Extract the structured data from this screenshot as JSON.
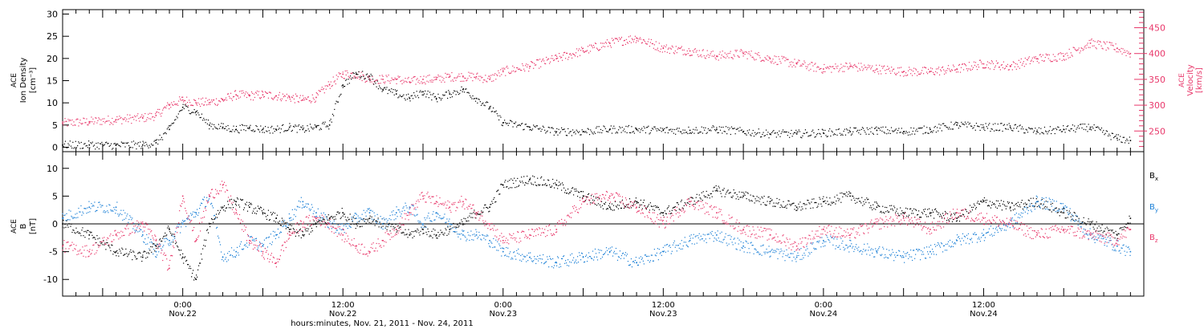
{
  "colors": {
    "density": "#000000",
    "velocity": "#e8376a",
    "bx": "#000000",
    "by": "#1a7fd6",
    "bz": "#e8376a",
    "frame": "#000000"
  },
  "footer": {
    "axis_title": "hours:minutes, Nov. 21, 2011 - Nov. 24, 2011"
  },
  "chart_data": [
    {
      "type": "scatter",
      "panel": "top",
      "ylabel_left": [
        "ACE",
        "Ion Density",
        "[cm⁻³]"
      ],
      "ylabel_right": [
        "ACE",
        "Velocity",
        "[km/s]"
      ],
      "x_unit": "hours since Nov. 21, 2011 00:00",
      "xlim": [
        15,
        96
      ],
      "ylim_left": [
        -1,
        31
      ],
      "ylim_right": [
        210,
        485
      ],
      "yticks_left": [
        0,
        5,
        10,
        15,
        20,
        25,
        30
      ],
      "yticks_right": [
        250,
        300,
        350,
        400,
        450
      ],
      "series": [
        {
          "key": "density",
          "axis": "left",
          "x": [
            15,
            17,
            19,
            21,
            22,
            23,
            24,
            25,
            26,
            27,
            28,
            29,
            30,
            31,
            32,
            33,
            34,
            35,
            36,
            37,
            38,
            39,
            40,
            41,
            42,
            43,
            44,
            45,
            46,
            47,
            48,
            50,
            52,
            54,
            56,
            58,
            60,
            62,
            64,
            66,
            68,
            70,
            72,
            74,
            76,
            78,
            80,
            82,
            84,
            86,
            88,
            90,
            92,
            94,
            95
          ],
          "y": [
            0.5,
            0.5,
            0.4,
            0.5,
            1.0,
            4.0,
            9.0,
            8.0,
            5.0,
            4.5,
            4.0,
            4.5,
            4.0,
            4.0,
            4.5,
            4.0,
            4.5,
            5.0,
            14.0,
            16.5,
            16.0,
            13.0,
            12.0,
            11.0,
            12.5,
            11.0,
            12.0,
            13.0,
            11.0,
            9.0,
            5.5,
            4.5,
            3.5,
            3.5,
            4.0,
            4.0,
            3.8,
            3.8,
            4.0,
            3.5,
            3.0,
            3.0,
            3.2,
            3.5,
            3.8,
            3.5,
            4.0,
            5.0,
            4.5,
            4.5,
            3.5,
            4.0,
            4.5,
            2.0,
            1.5
          ]
        },
        {
          "key": "velocity",
          "axis": "right",
          "x": [
            15,
            17,
            19,
            21,
            22,
            23,
            24,
            25,
            26,
            27,
            28,
            29,
            30,
            31,
            32,
            33,
            34,
            35,
            36,
            37,
            38,
            39,
            40,
            41,
            42,
            43,
            44,
            45,
            46,
            47,
            48,
            50,
            52,
            54,
            56,
            58,
            60,
            62,
            64,
            66,
            68,
            70,
            72,
            74,
            76,
            78,
            80,
            82,
            84,
            86,
            88,
            90,
            92,
            94,
            95
          ],
          "y": [
            265,
            268,
            272,
            275,
            280,
            300,
            310,
            305,
            305,
            310,
            320,
            318,
            320,
            318,
            315,
            310,
            315,
            340,
            360,
            360,
            350,
            350,
            350,
            345,
            350,
            350,
            355,
            355,
            355,
            350,
            365,
            375,
            390,
            405,
            420,
            430,
            410,
            405,
            395,
            400,
            390,
            380,
            370,
            375,
            370,
            365,
            365,
            370,
            380,
            375,
            390,
            395,
            420,
            410,
            400
          ]
        }
      ]
    },
    {
      "type": "scatter",
      "panel": "bottom",
      "ylabel_left": [
        "ACE",
        "B",
        "[nT]"
      ],
      "x_unit": "hours since Nov. 21, 2011 00:00",
      "xlim": [
        15,
        96
      ],
      "ylim": [
        -13,
        13
      ],
      "yticks": [
        -10,
        -5,
        0,
        5,
        10
      ],
      "xticks": [
        18,
        24,
        30,
        36,
        42,
        48,
        54,
        60,
        66,
        72,
        78,
        84,
        90,
        96
      ],
      "xtick_labels": [
        {
          "x": 24,
          "time": "0:00",
          "date": "Nov.22"
        },
        {
          "x": 36,
          "time": "12:00",
          "date": "Nov.22"
        },
        {
          "x": 48,
          "time": "0:00",
          "date": "Nov.23"
        },
        {
          "x": 60,
          "time": "12:00",
          "date": "Nov.23"
        },
        {
          "x": 72,
          "time": "0:00",
          "date": "Nov.24"
        },
        {
          "x": 84,
          "time": "12:00",
          "date": "Nov.24"
        }
      ],
      "series": [
        {
          "key": "bx",
          "name": "B",
          "subscript": "x",
          "x": [
            15,
            17,
            19,
            21,
            22,
            23,
            24,
            25,
            26,
            27,
            28,
            29,
            30,
            31,
            32,
            33,
            34,
            35,
            36,
            37,
            38,
            39,
            40,
            41,
            42,
            43,
            44,
            45,
            46,
            47,
            48,
            50,
            52,
            54,
            56,
            58,
            60,
            62,
            64,
            66,
            68,
            70,
            72,
            74,
            76,
            78,
            80,
            82,
            84,
            86,
            88,
            90,
            92,
            94,
            95
          ],
          "y": [
            0,
            -2,
            -5,
            -6,
            -4,
            -1,
            -6,
            -10,
            0,
            3,
            4,
            3,
            2,
            1,
            -1,
            -2,
            0,
            1,
            2,
            0,
            1,
            0,
            -1,
            -2,
            -1,
            -2,
            -1,
            0,
            2,
            3,
            7,
            8,
            7,
            5,
            3,
            4,
            2,
            4,
            6,
            5,
            4,
            3,
            4,
            5,
            3,
            2,
            2,
            1,
            4,
            3,
            4,
            2,
            0,
            -2,
            1
          ]
        },
        {
          "key": "by",
          "name": "B",
          "subscript": "y",
          "x": [
            15,
            17,
            19,
            21,
            22,
            23,
            24,
            25,
            26,
            27,
            28,
            29,
            30,
            31,
            32,
            33,
            34,
            35,
            36,
            37,
            38,
            39,
            40,
            41,
            42,
            43,
            44,
            45,
            46,
            47,
            48,
            50,
            52,
            54,
            56,
            58,
            60,
            62,
            64,
            66,
            68,
            70,
            72,
            74,
            76,
            78,
            80,
            82,
            84,
            86,
            88,
            90,
            92,
            94,
            95
          ],
          "y": [
            1,
            3,
            3,
            -2,
            -5,
            -3,
            0,
            2,
            5,
            -6,
            -5,
            -3,
            -4,
            -2,
            1,
            4,
            2,
            0,
            -1,
            1,
            2,
            0,
            2,
            3,
            0,
            2,
            0,
            -2,
            -2,
            -3,
            -5,
            -6,
            -7,
            -6,
            -5,
            -7,
            -5,
            -3,
            -2,
            -4,
            -5,
            -6,
            -3,
            -4,
            -5,
            -6,
            -5,
            -3,
            -2,
            0,
            4,
            3,
            -2,
            -4,
            -5
          ]
        },
        {
          "key": "bz",
          "name": "B",
          "subscript": "z",
          "x": [
            15,
            17,
            19,
            21,
            22,
            23,
            24,
            25,
            26,
            27,
            28,
            29,
            30,
            31,
            32,
            33,
            34,
            35,
            36,
            37,
            38,
            39,
            40,
            41,
            42,
            43,
            44,
            45,
            46,
            47,
            48,
            50,
            52,
            54,
            56,
            58,
            60,
            62,
            64,
            66,
            68,
            70,
            72,
            74,
            76,
            78,
            80,
            82,
            84,
            86,
            88,
            90,
            92,
            94,
            95
          ],
          "y": [
            -4,
            -5,
            -2,
            0,
            -3,
            -8,
            5,
            -3,
            5,
            7,
            2,
            -3,
            -5,
            -7,
            -2,
            0,
            1,
            0,
            -2,
            -4,
            -5,
            -3,
            -1,
            2,
            5,
            4,
            3,
            4,
            2,
            0,
            -3,
            -2,
            -1,
            4,
            5,
            3,
            0,
            4,
            2,
            -1,
            -2,
            -4,
            -1,
            -2,
            0,
            1,
            -1,
            2,
            1,
            0,
            -2,
            -1,
            -2,
            -3,
            -1
          ]
        }
      ]
    }
  ]
}
